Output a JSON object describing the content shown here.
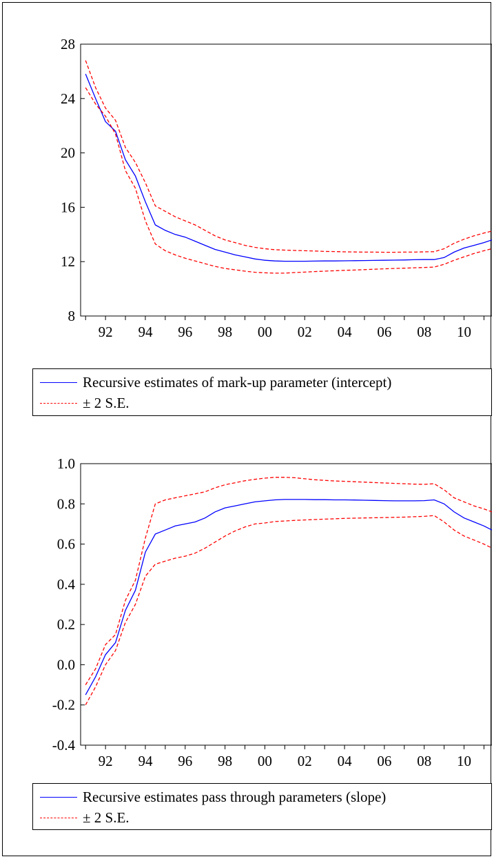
{
  "chart_data": [
    {
      "type": "line",
      "x": [
        1991,
        1991.5,
        1992,
        1992.5,
        1993,
        1993.5,
        1994,
        1994.5,
        1995,
        1995.5,
        1996,
        1996.5,
        1997,
        1997.5,
        1998,
        1998.5,
        1999,
        1999.5,
        2000,
        2000.5,
        2001,
        2001.5,
        2002,
        2002.5,
        2003,
        2003.5,
        2004,
        2004.5,
        2005,
        2005.5,
        2006,
        2006.5,
        2007,
        2007.5,
        2008,
        2008.5,
        2009,
        2009.5,
        2010,
        2010.5,
        2011,
        2011.4
      ],
      "series": [
        {
          "name": "Recursive estimates of mark-up parameter (intercept)",
          "style": "solid",
          "color": "#0000ff",
          "values": [
            25.8,
            24.0,
            22.3,
            21.6,
            19.5,
            18.3,
            16.4,
            14.7,
            14.3,
            14.0,
            13.8,
            13.5,
            13.2,
            12.9,
            12.7,
            12.5,
            12.35,
            12.2,
            12.1,
            12.05,
            12.03,
            12.03,
            12.03,
            12.04,
            12.05,
            12.05,
            12.06,
            12.07,
            12.08,
            12.09,
            12.1,
            12.11,
            12.12,
            12.14,
            12.15,
            12.15,
            12.3,
            12.7,
            13.0,
            13.2,
            13.4,
            13.6
          ]
        },
        {
          "name": "± 2 S.E.",
          "style": "dashed",
          "color": "#ff0000",
          "values": [
            26.8,
            24.8,
            23.3,
            22.4,
            20.4,
            19.3,
            17.8,
            16.1,
            15.7,
            15.3,
            15.0,
            14.7,
            14.3,
            13.9,
            13.6,
            13.4,
            13.2,
            13.05,
            12.95,
            12.88,
            12.85,
            12.82,
            12.8,
            12.78,
            12.75,
            12.74,
            12.72,
            12.71,
            12.7,
            12.7,
            12.69,
            12.69,
            12.7,
            12.7,
            12.72,
            12.73,
            12.95,
            13.35,
            13.65,
            13.9,
            14.1,
            14.25
          ]
        },
        {
          "name": "",
          "style": "dashed",
          "color": "#ff0000",
          "values": [
            24.8,
            23.6,
            22.7,
            21.4,
            18.7,
            17.4,
            15.0,
            13.3,
            12.8,
            12.5,
            12.25,
            12.05,
            11.85,
            11.65,
            11.5,
            11.4,
            11.3,
            11.22,
            11.18,
            11.15,
            11.15,
            11.2,
            11.23,
            11.27,
            11.3,
            11.33,
            11.36,
            11.38,
            11.41,
            11.44,
            11.47,
            11.5,
            11.52,
            11.55,
            11.57,
            11.6,
            11.8,
            12.1,
            12.35,
            12.6,
            12.8,
            12.95
          ]
        }
      ],
      "xticks": [
        "92",
        "94",
        "96",
        "98",
        "00",
        "02",
        "04",
        "06",
        "08",
        "10"
      ],
      "yticks": [
        "8",
        "12",
        "16",
        "20",
        "24",
        "28"
      ],
      "xlim": [
        1990.75,
        2011.4
      ],
      "ylim": [
        8,
        28
      ]
    },
    {
      "type": "line",
      "x": [
        1991,
        1991.5,
        1992,
        1992.5,
        1993,
        1993.5,
        1994,
        1994.5,
        1995,
        1995.5,
        1996,
        1996.5,
        1997,
        1997.5,
        1998,
        1998.5,
        1999,
        1999.5,
        2000,
        2000.5,
        2001,
        2001.5,
        2002,
        2002.5,
        2003,
        2003.5,
        2004,
        2004.5,
        2005,
        2005.5,
        2006,
        2006.5,
        2007,
        2007.5,
        2008,
        2008.5,
        2009,
        2009.5,
        2010,
        2010.5,
        2011,
        2011.4
      ],
      "series": [
        {
          "name": "Recursive estimates pass through parameters (slope)",
          "style": "solid",
          "color": "#0000ff",
          "values": [
            -0.15,
            -0.06,
            0.05,
            0.11,
            0.27,
            0.37,
            0.56,
            0.65,
            0.67,
            0.69,
            0.7,
            0.71,
            0.73,
            0.76,
            0.78,
            0.79,
            0.8,
            0.81,
            0.815,
            0.82,
            0.822,
            0.822,
            0.822,
            0.821,
            0.821,
            0.82,
            0.82,
            0.819,
            0.818,
            0.817,
            0.816,
            0.815,
            0.815,
            0.815,
            0.816,
            0.82,
            0.8,
            0.76,
            0.73,
            0.71,
            0.69,
            0.67
          ]
        },
        {
          "name": "± 2 S.E.",
          "style": "dashed",
          "color": "#ff0000",
          "values": [
            -0.1,
            -0.02,
            0.1,
            0.15,
            0.32,
            0.42,
            0.63,
            0.8,
            0.82,
            0.83,
            0.84,
            0.85,
            0.86,
            0.88,
            0.895,
            0.905,
            0.915,
            0.922,
            0.928,
            0.932,
            0.932,
            0.93,
            0.925,
            0.92,
            0.917,
            0.914,
            0.912,
            0.91,
            0.908,
            0.906,
            0.904,
            0.902,
            0.9,
            0.898,
            0.897,
            0.9,
            0.87,
            0.83,
            0.81,
            0.79,
            0.775,
            0.76
          ]
        },
        {
          "name": "",
          "style": "dashed",
          "color": "#ff0000",
          "values": [
            -0.2,
            -0.11,
            0.0,
            0.07,
            0.21,
            0.3,
            0.44,
            0.5,
            0.515,
            0.53,
            0.54,
            0.555,
            0.58,
            0.61,
            0.64,
            0.665,
            0.685,
            0.7,
            0.705,
            0.712,
            0.715,
            0.718,
            0.72,
            0.722,
            0.724,
            0.726,
            0.728,
            0.729,
            0.73,
            0.731,
            0.732,
            0.733,
            0.734,
            0.736,
            0.738,
            0.742,
            0.71,
            0.67,
            0.64,
            0.62,
            0.6,
            0.58
          ]
        }
      ],
      "xticks": [
        "92",
        "94",
        "96",
        "98",
        "00",
        "02",
        "04",
        "06",
        "08",
        "10"
      ],
      "yticks": [
        "-0.4",
        "-0.2",
        "0.0",
        "0.2",
        "0.4",
        "0.6",
        "0.8",
        "1.0"
      ],
      "xlim": [
        1990.75,
        2011.4
      ],
      "ylim": [
        -0.4,
        1.0
      ]
    }
  ],
  "legends": [
    {
      "items": [
        {
          "label": "Recursive estimates of mark-up parameter (intercept)"
        },
        {
          "label": "± 2 S.E."
        }
      ]
    },
    {
      "items": [
        {
          "label": "Recursive estimates pass through parameters (slope)"
        },
        {
          "label": "± 2 S.E."
        }
      ]
    }
  ],
  "colors": {
    "estimate": "#0000ff",
    "band": "#ff0000"
  }
}
